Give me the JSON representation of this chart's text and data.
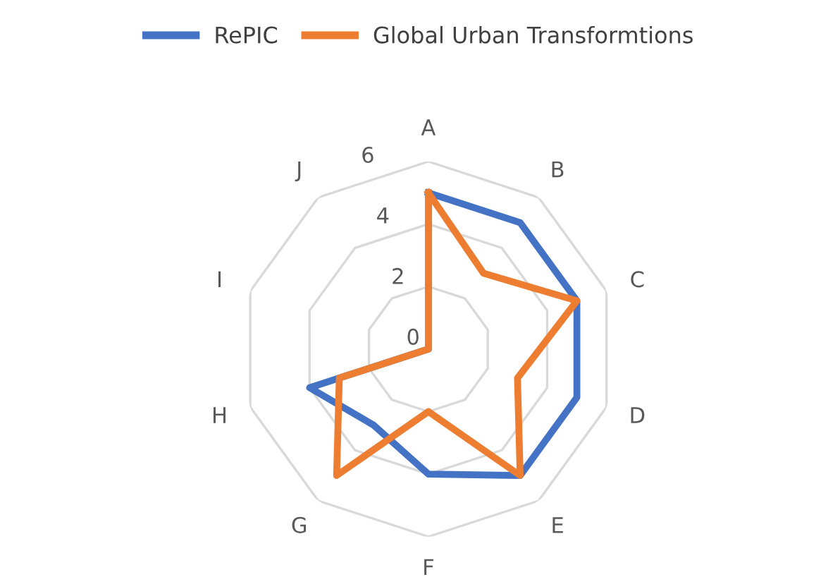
{
  "chart_data": {
    "type": "radar",
    "categories": [
      "A",
      "B",
      "C",
      "D",
      "E",
      "F",
      "G",
      "H",
      "I",
      "J"
    ],
    "series": [
      {
        "name": "RePIC",
        "color": "#4472c4",
        "values": [
          5,
          5,
          5,
          5,
          5,
          4,
          3,
          4,
          0,
          0
        ]
      },
      {
        "name": "Global Urban Transformtions",
        "color": "#ed7d31",
        "values": [
          5,
          3,
          5,
          3,
          5,
          2,
          5,
          3,
          0,
          0
        ]
      }
    ],
    "ylim": [
      0,
      6
    ],
    "yticks": [
      0,
      2,
      4,
      6
    ],
    "grid": true,
    "legend": "top",
    "marker": "none",
    "line_style": "solid"
  }
}
